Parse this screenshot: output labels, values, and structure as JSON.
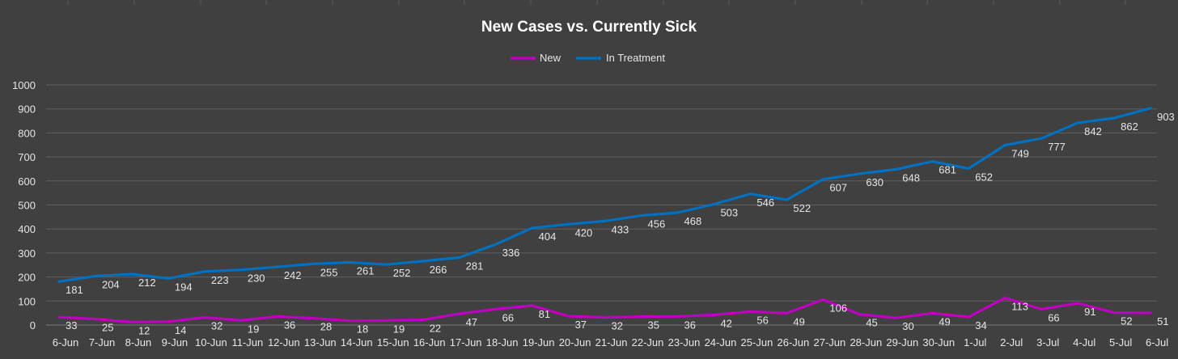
{
  "chart_data": {
    "type": "line",
    "title": "New Cases vs. Currently Sick",
    "xlabel": "",
    "ylabel": "",
    "ylim": [
      0,
      1000
    ],
    "yticks": [
      0,
      100,
      200,
      300,
      400,
      500,
      600,
      700,
      800,
      900,
      1000
    ],
    "grid": true,
    "legend_position": "top",
    "categories": [
      "6-Jun",
      "7-Jun",
      "8-Jun",
      "9-Jun",
      "10-Jun",
      "11-Jun",
      "12-Jun",
      "13-Jun",
      "14-Jun",
      "15-Jun",
      "16-Jun",
      "17-Jun",
      "18-Jun",
      "19-Jun",
      "20-Jun",
      "21-Jun",
      "22-Jun",
      "23-Jun",
      "24-Jun",
      "25-Jun",
      "26-Jun",
      "27-Jun",
      "28-Jun",
      "29-Jun",
      "30-Jun",
      "1-Jul",
      "2-Jul",
      "3-Jul",
      "4-Jul",
      "5-Jul",
      "6-Jul"
    ],
    "series": [
      {
        "name": "New",
        "color": "#c000c0",
        "values": [
          33,
          25,
          12,
          14,
          32,
          19,
          36,
          28,
          18,
          19,
          22,
          47,
          66,
          81,
          37,
          32,
          35,
          36,
          42,
          56,
          49,
          106,
          45,
          30,
          49,
          34,
          113,
          66,
          91,
          52,
          51
        ]
      },
      {
        "name": "In Treatment",
        "color": "#0070c0",
        "values": [
          181,
          204,
          212,
          194,
          223,
          230,
          242,
          255,
          261,
          252,
          266,
          281,
          336,
          404,
          420,
          433,
          456,
          468,
          503,
          546,
          522,
          607,
          630,
          648,
          681,
          652,
          749,
          777,
          842,
          862,
          903
        ]
      }
    ]
  },
  "colors": {
    "background": "#404040",
    "gridline": "#5f5f5f",
    "text": "#ffffff",
    "label": "#e6e6e6"
  }
}
